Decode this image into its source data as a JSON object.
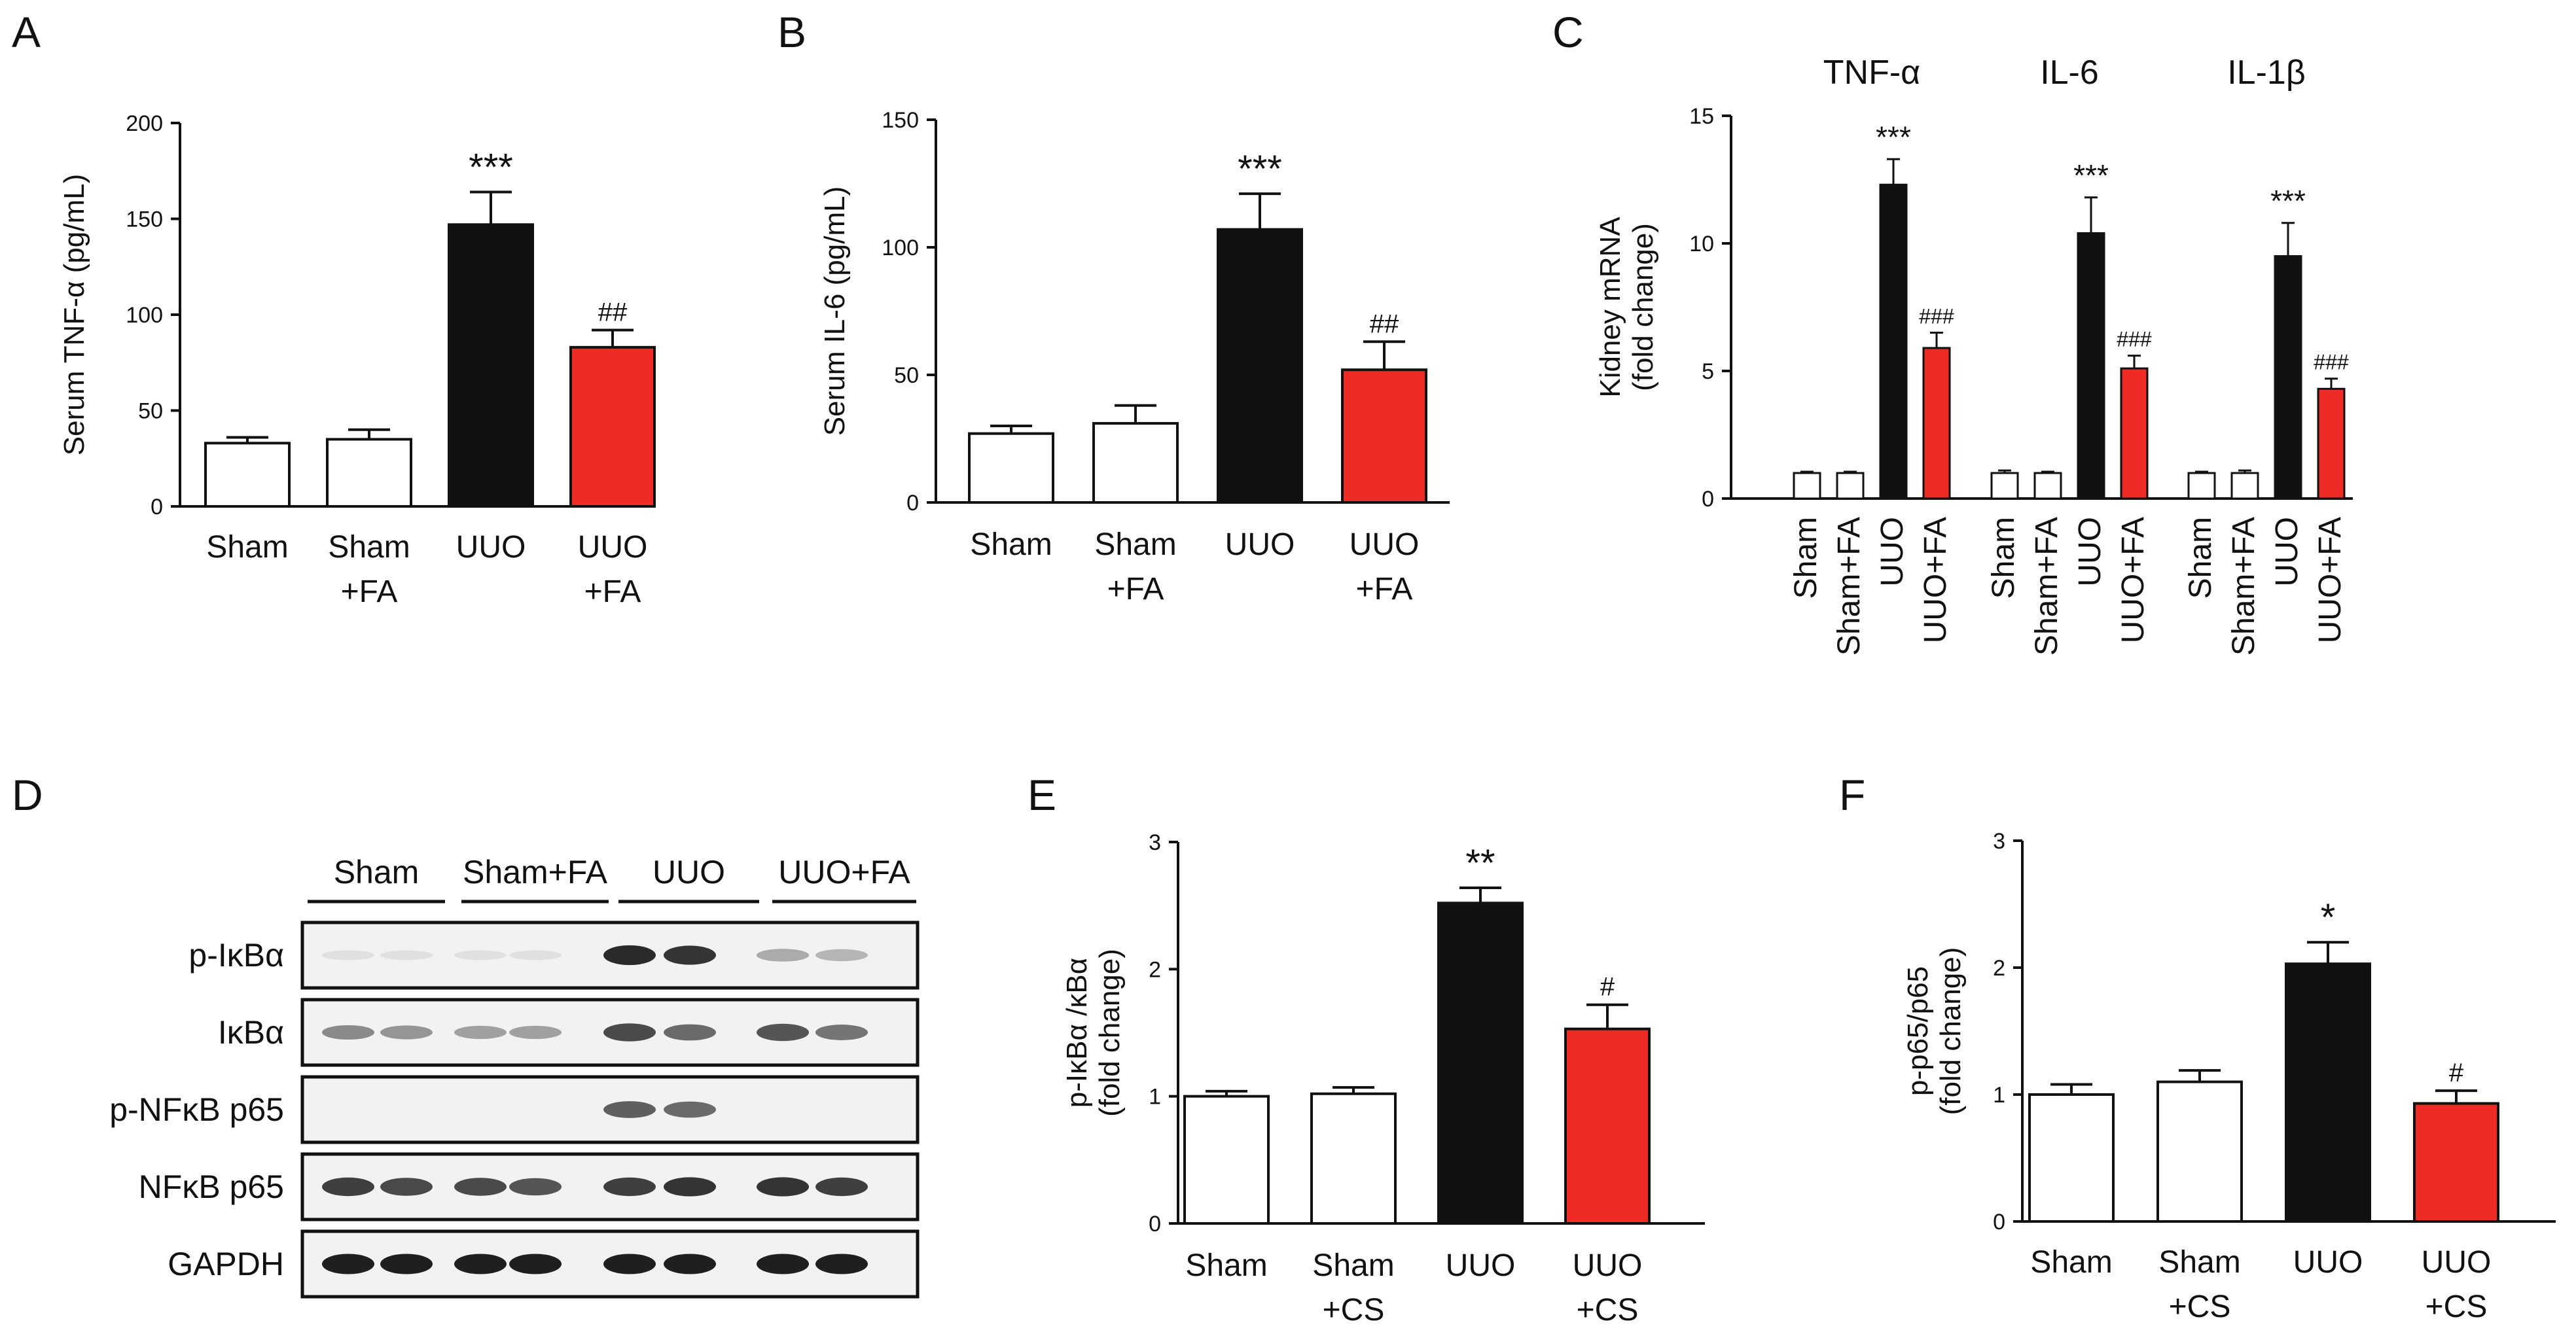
{
  "colors": {
    "uuo": "#111111",
    "uuo_treated": "#ee2b24",
    "control": "#ffffff",
    "stroke": "#111111"
  },
  "chart_data": [
    {
      "id": "A",
      "type": "bar",
      "panel_label": "A",
      "categories": [
        [
          "Sham"
        ],
        [
          "Sham",
          "+FA"
        ],
        [
          "UUO"
        ],
        [
          "UUO",
          "+FA"
        ]
      ],
      "values": [
        33,
        35,
        147,
        83
      ],
      "errors": [
        3,
        5,
        17,
        9
      ],
      "annotations": [
        "",
        "",
        "***",
        "##"
      ],
      "fills": [
        "control",
        "control",
        "uuo",
        "uuo_treated"
      ],
      "ylabel": "Serum TNF-α  (pg/mL)",
      "ylim": [
        0,
        200
      ],
      "yticks": [
        0,
        50,
        100,
        150,
        200
      ]
    },
    {
      "id": "B",
      "type": "bar",
      "panel_label": "B",
      "categories": [
        [
          "Sham"
        ],
        [
          "Sham",
          "+FA"
        ],
        [
          "UUO"
        ],
        [
          "UUO",
          "+FA"
        ]
      ],
      "values": [
        27,
        31,
        107,
        52
      ],
      "errors": [
        3,
        7,
        14,
        11
      ],
      "annotations": [
        "",
        "",
        "***",
        "##"
      ],
      "fills": [
        "control",
        "control",
        "uuo",
        "uuo_treated"
      ],
      "ylabel": "Serum IL-6  (pg/mL)",
      "ylim": [
        0,
        150
      ],
      "yticks": [
        0,
        50,
        100,
        150
      ]
    },
    {
      "id": "C",
      "type": "bar",
      "panel_label": "C",
      "group_labels": [
        "TNF-α",
        "IL-6",
        "IL-1β"
      ],
      "categories": [
        "Sham",
        "Sham+FA",
        "UUO",
        "UUO+FA"
      ],
      "series": [
        {
          "name": "TNF-α",
          "values": [
            1,
            1,
            12.3,
            5.9
          ],
          "errors": [
            0.05,
            0.05,
            1.0,
            0.6
          ],
          "annotations": [
            "",
            "",
            "***",
            "###"
          ]
        },
        {
          "name": "IL-6",
          "values": [
            1,
            1,
            10.4,
            5.1
          ],
          "errors": [
            0.1,
            0.05,
            1.4,
            0.5
          ],
          "annotations": [
            "",
            "",
            "***",
            "###"
          ]
        },
        {
          "name": "IL-1β",
          "values": [
            1,
            1,
            9.5,
            4.3
          ],
          "errors": [
            0.05,
            0.1,
            1.3,
            0.4
          ],
          "annotations": [
            "",
            "",
            "***",
            "###"
          ]
        }
      ],
      "fills": [
        "control",
        "control",
        "uuo",
        "uuo_treated"
      ],
      "ylabel_lines": [
        "Kidney mRNA",
        "(fold change)"
      ],
      "ylim": [
        0,
        15
      ],
      "yticks": [
        0,
        5,
        10,
        15
      ]
    },
    {
      "id": "E",
      "type": "bar",
      "panel_label": "E",
      "categories": [
        [
          "Sham"
        ],
        [
          "Sham",
          "+CS"
        ],
        [
          "UUO"
        ],
        [
          "UUO",
          "+CS"
        ]
      ],
      "values": [
        1.0,
        1.02,
        2.52,
        1.53
      ],
      "errors": [
        0.04,
        0.05,
        0.12,
        0.19
      ],
      "annotations": [
        "",
        "",
        "**",
        "#"
      ],
      "fills": [
        "control",
        "control",
        "uuo",
        "uuo_treated"
      ],
      "ylabel_lines": [
        "p-IκBα /κBα",
        "(fold change)"
      ],
      "ylim": [
        0,
        3
      ],
      "yticks": [
        0,
        1,
        2,
        3
      ]
    },
    {
      "id": "F",
      "type": "bar",
      "panel_label": "F",
      "categories": [
        [
          "Sham"
        ],
        [
          "Sham",
          "+CS"
        ],
        [
          "UUO"
        ],
        [
          "UUO",
          "+CS"
        ]
      ],
      "values": [
        1.0,
        1.1,
        2.03,
        0.93
      ],
      "errors": [
        0.08,
        0.09,
        0.17,
        0.1
      ],
      "annotations": [
        "",
        "",
        "*",
        "#"
      ],
      "fills": [
        "control",
        "control",
        "uuo",
        "uuo_treated"
      ],
      "ylabel_lines": [
        "p-p65/p65",
        "(fold change)"
      ],
      "ylim": [
        0,
        3
      ],
      "yticks": [
        0,
        1,
        2,
        3
      ]
    }
  ],
  "blot": {
    "panel_label": "D",
    "groups": [
      "Sham",
      "Sham+FA",
      "UUO",
      "UUO+FA"
    ],
    "rows": [
      {
        "label": "p-IκBα",
        "intensities": [
          0.05,
          0.05,
          0.05,
          0.05,
          0.9,
          0.85,
          0.3,
          0.25
        ]
      },
      {
        "label": "IκBα",
        "intensities": [
          0.45,
          0.4,
          0.35,
          0.35,
          0.75,
          0.6,
          0.7,
          0.55
        ]
      },
      {
        "label": "p-NFκB p65",
        "intensities": [
          0.02,
          0.02,
          0.02,
          0.02,
          0.65,
          0.6,
          0.02,
          0.02
        ]
      },
      {
        "label": "NFκB p65",
        "intensities": [
          0.8,
          0.75,
          0.75,
          0.7,
          0.8,
          0.85,
          0.85,
          0.8
        ]
      },
      {
        "label": "GAPDH",
        "intensities": [
          0.95,
          0.95,
          0.95,
          0.95,
          0.95,
          0.95,
          0.95,
          0.95
        ]
      }
    ]
  }
}
